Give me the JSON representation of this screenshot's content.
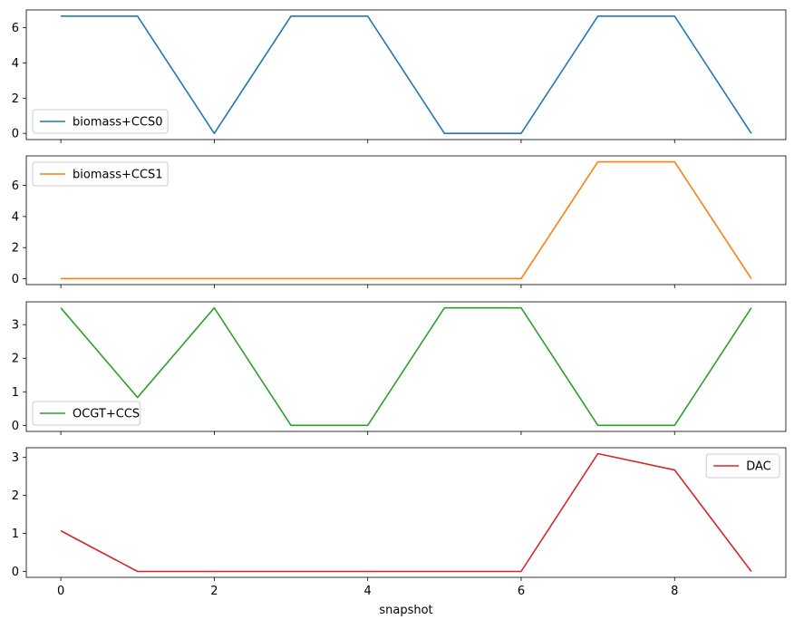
{
  "chart_data": {
    "type": "line",
    "xlabel": "snapshot",
    "x": [
      0,
      1,
      2,
      3,
      4,
      5,
      6,
      7,
      8,
      9
    ],
    "x_ticks": [
      0,
      2,
      4,
      6,
      8
    ],
    "xlim": [
      -0.45,
      9.45
    ],
    "grid": false,
    "panels": [
      {
        "series": [
          {
            "name": "biomass+CCS0",
            "color": "#1f77b4",
            "values": [
              6.65,
              6.65,
              0.0,
              6.65,
              6.65,
              0.0,
              0.0,
              6.65,
              6.65,
              0.0
            ]
          }
        ],
        "ylim": [
          -0.35,
          7.0
        ],
        "y_ticks": [
          0,
          2,
          4,
          6
        ],
        "legend": "lower-left"
      },
      {
        "series": [
          {
            "name": "biomass+CCS1",
            "color": "#ff7f0e",
            "values": [
              0.0,
              0.0,
              0.0,
              0.0,
              0.0,
              0.0,
              0.0,
              7.52,
              7.52,
              0.0
            ]
          }
        ],
        "ylim": [
          -0.38,
          7.9
        ],
        "y_ticks": [
          0,
          2,
          4,
          6
        ],
        "legend": "upper-left"
      },
      {
        "series": [
          {
            "name": "OCGT+CCS",
            "color": "#2ca02c",
            "values": [
              3.5,
              0.83,
              3.5,
              0.0,
              0.0,
              3.5,
              3.5,
              0.0,
              0.0,
              3.5
            ]
          }
        ],
        "ylim": [
          -0.18,
          3.68
        ],
        "y_ticks": [
          0,
          1,
          2,
          3
        ],
        "legend": "lower-left"
      },
      {
        "series": [
          {
            "name": "DAC",
            "color": "#d62728",
            "values": [
              1.07,
              0.0,
              0.0,
              0.0,
              0.0,
              0.0,
              0.0,
              3.1,
              2.67,
              0.0
            ]
          }
        ],
        "ylim": [
          -0.155,
          3.255
        ],
        "y_ticks": [
          0,
          1,
          2,
          3
        ],
        "legend": "upper-right"
      }
    ]
  }
}
